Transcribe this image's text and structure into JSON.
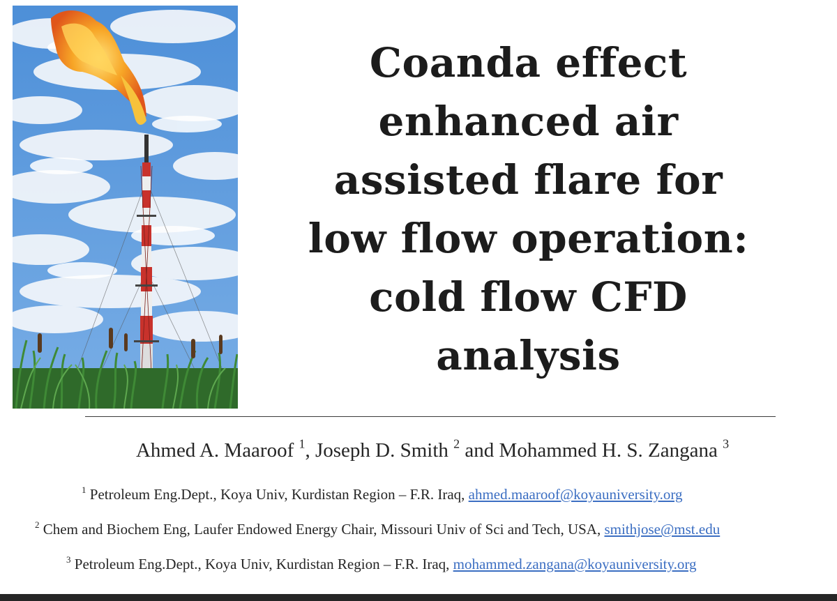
{
  "slide": {
    "image": {
      "icon": "flare-stack-photo"
    },
    "title_lines": [
      "Coanda effect",
      "enhanced air",
      "assisted flare for",
      "low flow operation:",
      "cold flow CFD",
      "analysis"
    ],
    "authors": [
      {
        "name": "Ahmed A. Maaroof",
        "sup": "1",
        "sep": ", "
      },
      {
        "name": "Joseph D. Smith",
        "sup": "2",
        "sep": " and "
      },
      {
        "name": "Mohammed H. S. Zangana",
        "sup": "3",
        "sep": ""
      }
    ],
    "affiliations": [
      {
        "sup": "1",
        "text": "Petroleum Eng.Dept., Koya Univ, Kurdistan Region – F.R. Iraq,",
        "email": "ahmed.maaroof@koyauniversity.org"
      },
      {
        "sup": "2",
        "text": "Chem and Biochem Eng, Laufer Endowed Energy Chair, Missouri Univ of Sci and Tech, USA,",
        "email": "smithjose@mst.edu"
      },
      {
        "sup": "3",
        "text": "Petroleum Eng.Dept., Koya Univ, Kurdistan Region – F.R. Iraq,",
        "email": "mohammed.zangana@koyauniversity.org"
      }
    ],
    "colors": {
      "email_link": "#3b6ec2",
      "flame": "#f29a1e",
      "tower_red": "#c8322c",
      "sky": "#5a93d6"
    }
  }
}
